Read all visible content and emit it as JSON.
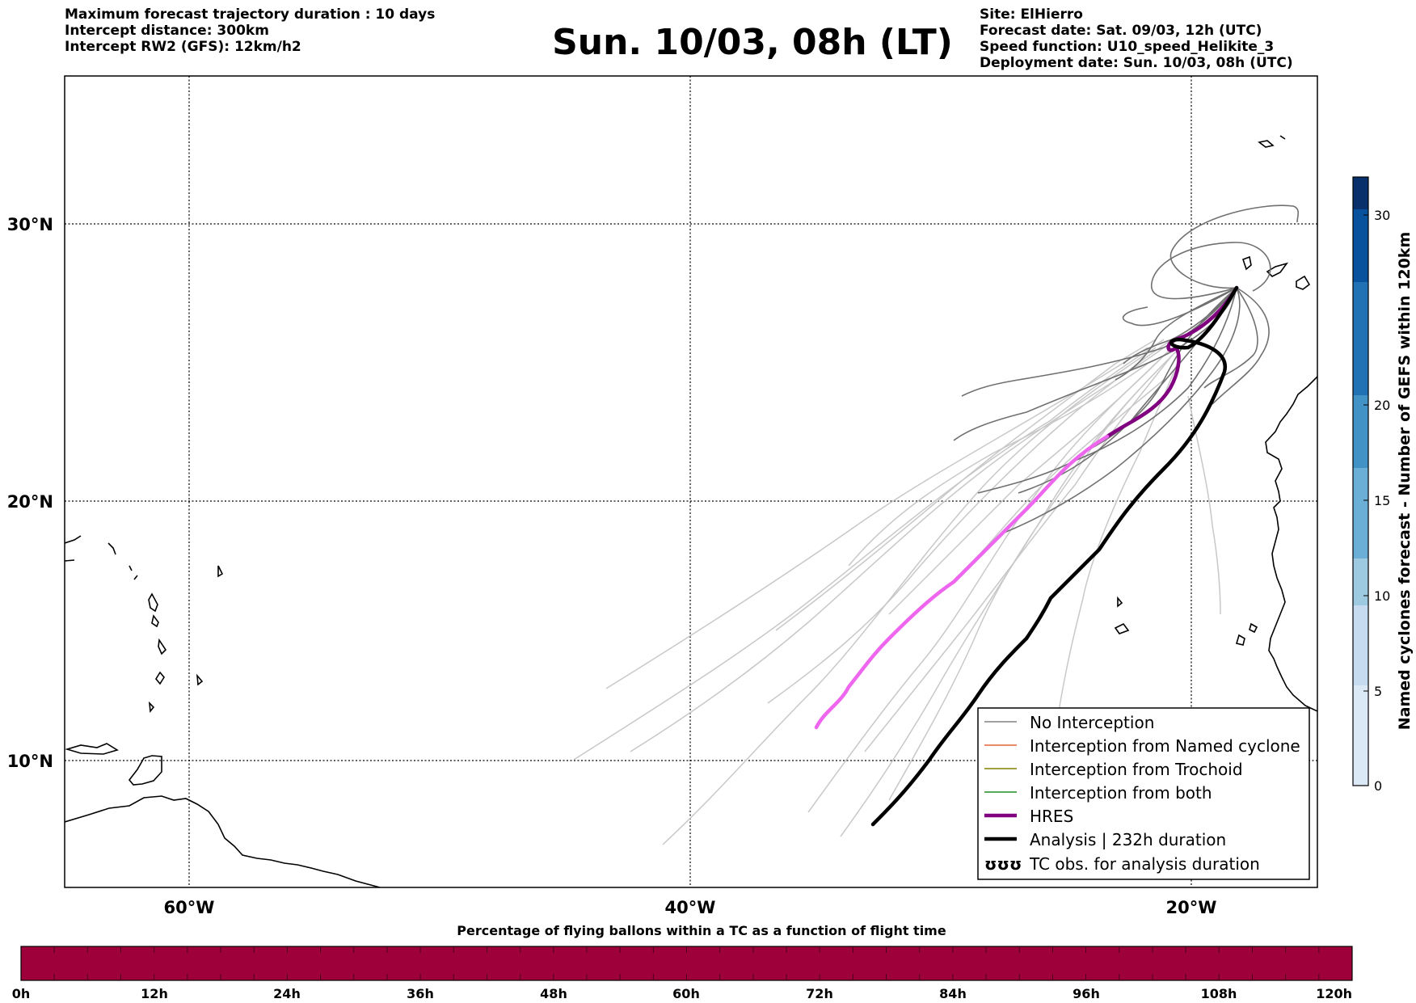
{
  "header_left": {
    "line1": "Maximum forecast trajectory duration : 10 days",
    "line2": "Intercept distance: 300km",
    "line3": "Intercept RW2 (GFS):  12km/h2"
  },
  "title": "Sun. 10/03, 08h (LT)",
  "header_right": {
    "site": "Site: ElHierro",
    "forecast_date": "Forecast date: Sat. 09/03, 12h (UTC)",
    "speed_function": "Speed function: U10_speed_Helikite_3",
    "deployment_date": "Deployment date: Sun. 10/03, 08h (UTC)"
  },
  "map": {
    "lon_range": [
      -65,
      15
    ],
    "lat_range": [
      5,
      35
    ],
    "lat_labels": [
      "30°N",
      "20°N",
      "10°N"
    ],
    "lon_labels": [
      "60°W",
      "40°W",
      "20°W"
    ],
    "grid": "dotted"
  },
  "legend": {
    "items": [
      {
        "label": "No Interception",
        "color": "#808080",
        "style": "thin"
      },
      {
        "label": "Interception from Named cyclone",
        "color": "#e8643c",
        "style": "thin"
      },
      {
        "label": "Interception from Trochoid",
        "color": "#808000",
        "style": "thin"
      },
      {
        "label": "Interception from both",
        "color": "#228b22",
        "style": "thin"
      },
      {
        "label": "HRES",
        "color": "#800080",
        "style": "thick"
      },
      {
        "label": "Analysis | 232h duration",
        "color": "#000000",
        "style": "thick"
      },
      {
        "label": "TC obs. for analysis duration",
        "color": "#000000",
        "style": "symbol",
        "symbol": "ʊʊʊ"
      }
    ]
  },
  "colorbar_right": {
    "label": "Named cyclones forecast - Number of GEFS within 120km",
    "ticks": [
      "0",
      "5",
      "10",
      "15",
      "20",
      "30"
    ],
    "colors": [
      "#dbe8f5",
      "#c6dbef",
      "#9ecae1",
      "#6baed6",
      "#4292c6",
      "#2171b5",
      "#08519c",
      "#08306b"
    ]
  },
  "colorbar_bottom": {
    "title": "Percentage of flying ballons within a TC as a function of flight time",
    "ticks": [
      "0h",
      "12h",
      "24h",
      "36h",
      "48h",
      "60h",
      "72h",
      "84h",
      "96h",
      "108h",
      "120h"
    ],
    "color": "#9e003a"
  },
  "colors": {
    "hres_early": "#800080",
    "hres_late": "#ee66ee",
    "analysis": "#000000",
    "ensemble_dark": "#707070",
    "ensemble_light": "#c8c8c8"
  }
}
